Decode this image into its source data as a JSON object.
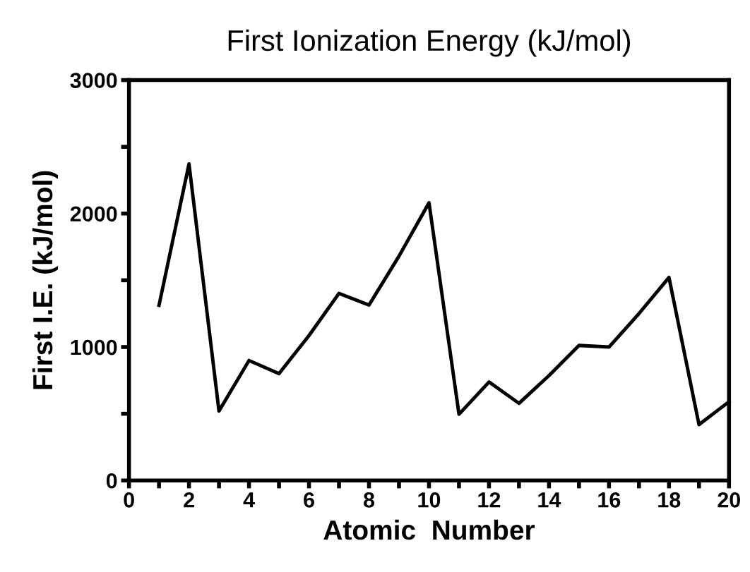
{
  "chart_data": {
    "type": "line",
    "title": "First Ionization Energy (kJ/mol)",
    "xlabel": "Atomic  Number",
    "ylabel": "First I.E. (kJ/mol)",
    "x": [
      1,
      2,
      3,
      4,
      5,
      6,
      7,
      8,
      9,
      10,
      11,
      12,
      13,
      14,
      15,
      16,
      17,
      18,
      19,
      20
    ],
    "series": [
      {
        "color": "#000000",
        "values": [
          1312,
          2372,
          520,
          899,
          801,
          1086,
          1402,
          1314,
          1681,
          2081,
          496,
          738,
          578,
          786,
          1012,
          1000,
          1251,
          1521,
          419,
          590
        ]
      }
    ],
    "xlim": [
      0,
      20
    ],
    "xticks": [
      0,
      {
        "value": 1,
        "label": null
      },
      2,
      {
        "value": 3,
        "label": null
      },
      4,
      {
        "value": 5,
        "label": null
      },
      6,
      {
        "value": 7,
        "label": null
      },
      8,
      {
        "value": 9,
        "label": null
      },
      10,
      {
        "value": 11,
        "label": null
      },
      12,
      {
        "value": 13,
        "label": null
      },
      14,
      {
        "value": 15,
        "label": null
      },
      16,
      {
        "value": 17,
        "label": null
      },
      18,
      {
        "value": 19,
        "label": null
      },
      20
    ],
    "ylim": [
      0,
      3000
    ],
    "yticks": [
      0,
      {
        "value": 500,
        "label": null
      },
      1000,
      {
        "value": 1500,
        "label": null
      },
      2000,
      {
        "value": 2500,
        "label": null
      },
      3000
    ],
    "grid": false,
    "legend": false,
    "marker": "none",
    "line_style": "solid"
  }
}
